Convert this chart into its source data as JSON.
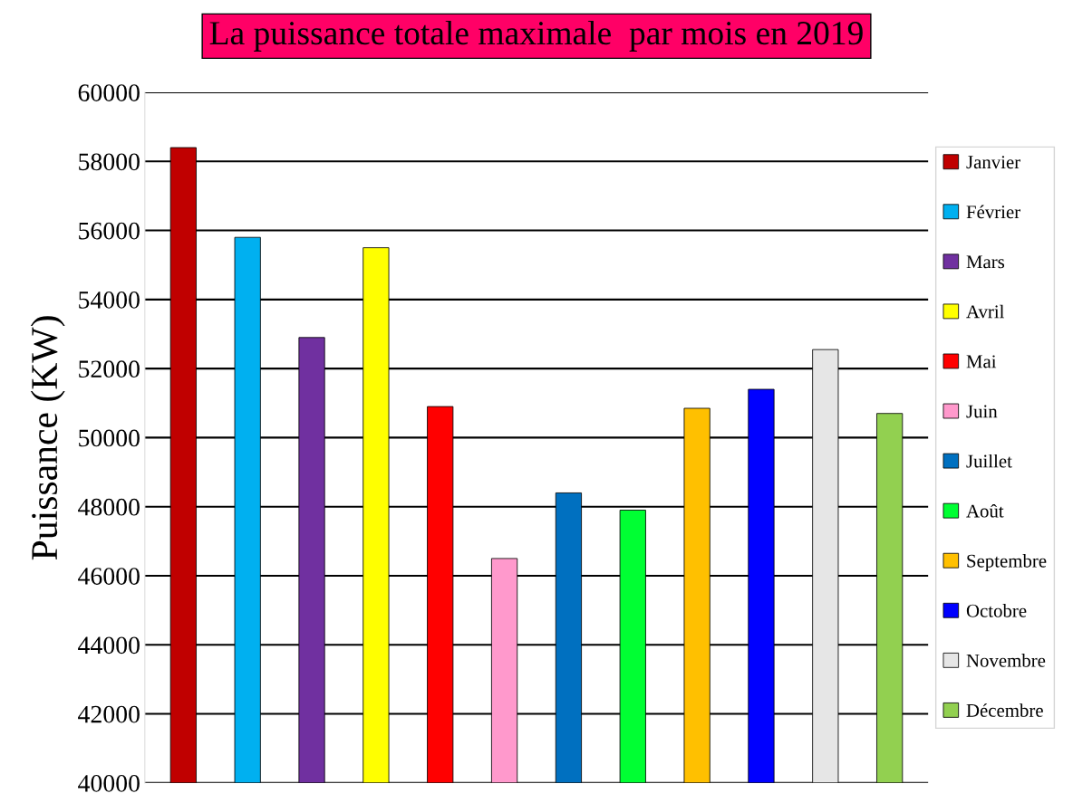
{
  "chart_data": {
    "type": "bar",
    "title": "La puissance totale maximale  par mois en 2019",
    "ylabel": "Puissance (KW)",
    "categories": [
      null,
      null,
      null,
      null,
      null,
      null,
      null,
      null,
      null,
      null,
      null,
      null
    ],
    "series": [
      {
        "name": "Janvier",
        "color": "#c00000",
        "values": [
          58400,
          null,
          null,
          null,
          null,
          null,
          null,
          null,
          null,
          null,
          null,
          null
        ]
      },
      {
        "name": "Février",
        "color": "#00b0f0",
        "values": [
          null,
          55800,
          null,
          null,
          null,
          null,
          null,
          null,
          null,
          null,
          null,
          null
        ]
      },
      {
        "name": "Mars",
        "color": "#7030a0",
        "values": [
          null,
          null,
          52900,
          null,
          null,
          null,
          null,
          null,
          null,
          null,
          null,
          null
        ]
      },
      {
        "name": "Avril",
        "color": "#ffff00",
        "values": [
          null,
          null,
          null,
          55500,
          null,
          null,
          null,
          null,
          null,
          null,
          null,
          null
        ]
      },
      {
        "name": "Mai",
        "color": "#ff0000",
        "values": [
          null,
          null,
          null,
          null,
          50900,
          null,
          null,
          null,
          null,
          null,
          null,
          null
        ]
      },
      {
        "name": "Juin",
        "color": "#ff99cc",
        "values": [
          null,
          null,
          null,
          null,
          null,
          46500,
          null,
          null,
          null,
          null,
          null,
          null
        ]
      },
      {
        "name": "Juillet",
        "color": "#0070c0",
        "values": [
          null,
          null,
          null,
          null,
          null,
          null,
          48400,
          null,
          null,
          null,
          null,
          null
        ]
      },
      {
        "name": "Août",
        "color": "#00ff33",
        "values": [
          null,
          null,
          null,
          null,
          null,
          null,
          null,
          47900,
          null,
          null,
          null,
          null
        ]
      },
      {
        "name": "Septembre",
        "color": "#ffc000",
        "values": [
          null,
          null,
          null,
          null,
          null,
          null,
          null,
          null,
          50850,
          null,
          null,
          null
        ]
      },
      {
        "name": "Octobre",
        "color": "#0000ff",
        "values": [
          null,
          null,
          null,
          null,
          null,
          null,
          null,
          null,
          null,
          51400,
          null,
          null
        ]
      },
      {
        "name": "Novembre",
        "color": "#e6e6e6",
        "values": [
          null,
          null,
          null,
          null,
          null,
          null,
          null,
          null,
          null,
          null,
          52550,
          null
        ]
      },
      {
        "name": "Décembre",
        "color": "#92d050",
        "values": [
          null,
          null,
          null,
          null,
          null,
          null,
          null,
          null,
          null,
          null,
          null,
          50700
        ]
      }
    ],
    "ylim": [
      40000,
      60000
    ],
    "yticks": [
      40000,
      42000,
      44000,
      46000,
      48000,
      50000,
      52000,
      54000,
      56000,
      58000,
      60000
    ],
    "grid": "y",
    "legend": "right",
    "tick_labels": "y"
  }
}
